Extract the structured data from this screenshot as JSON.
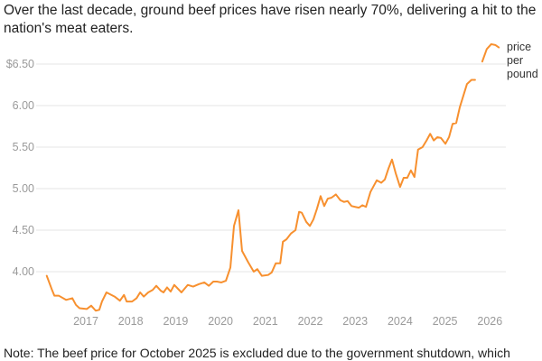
{
  "chart_data": {
    "type": "line",
    "title": "Over the last decade, ground beef prices have risen nearly 70%, delivering a hit to the nation's meat eaters.",
    "note": "Note: The beef price for October 2025 is excluded due to the government shutdown, which",
    "xlabel": "",
    "ylabel": "",
    "ylim": [
      3.57,
      6.75
    ],
    "xlim": [
      2015.9,
      2026.4
    ],
    "grid": true,
    "y_ticks": [
      {
        "value": 4.0,
        "label": "4.00"
      },
      {
        "value": 4.5,
        "label": "4.50"
      },
      {
        "value": 5.0,
        "label": "5.00"
      },
      {
        "value": 5.5,
        "label": "5.50"
      },
      {
        "value": 6.0,
        "label": "6.00"
      },
      {
        "value": 6.5,
        "label": "$6.50"
      }
    ],
    "x_ticks": [
      {
        "value": 2017,
        "label": "2017"
      },
      {
        "value": 2018,
        "label": "2018"
      },
      {
        "value": 2019,
        "label": "2019"
      },
      {
        "value": 2020,
        "label": "2020"
      },
      {
        "value": 2021,
        "label": "2021"
      },
      {
        "value": 2022,
        "label": "2022"
      },
      {
        "value": 2023,
        "label": "2023"
      },
      {
        "value": 2024,
        "label": "2024"
      },
      {
        "value": 2025,
        "label": "2025"
      },
      {
        "value": 2026,
        "label": "2026"
      }
    ],
    "series": [
      {
        "name": "price per pound",
        "label_lines": [
          "price",
          "per",
          "pound"
        ],
        "color": "#f7902f",
        "x": [
          2016.13,
          2016.24,
          2016.3,
          2016.4,
          2016.56,
          2016.7,
          2016.78,
          2016.86,
          2017.02,
          2017.12,
          2017.22,
          2017.3,
          2017.36,
          2017.46,
          2017.64,
          2017.76,
          2017.85,
          2017.91,
          2018.03,
          2018.13,
          2018.21,
          2018.29,
          2018.39,
          2018.49,
          2018.57,
          2018.67,
          2018.73,
          2018.81,
          2018.89,
          2018.97,
          2019.13,
          2019.27,
          2019.39,
          2019.52,
          2019.64,
          2019.74,
          2019.84,
          2019.92,
          2020.02,
          2020.12,
          2020.22,
          2020.3,
          2020.4,
          2020.48,
          2020.62,
          2020.74,
          2020.82,
          2020.92,
          2021.06,
          2021.14,
          2021.23,
          2021.33,
          2021.39,
          2021.47,
          2021.57,
          2021.67,
          2021.75,
          2021.81,
          2021.91,
          2021.99,
          2022.07,
          2022.15,
          2022.23,
          2022.31,
          2022.39,
          2022.47,
          2022.57,
          2022.67,
          2022.75,
          2022.83,
          2022.92,
          2023.0,
          2023.08,
          2023.16,
          2023.24,
          2023.34,
          2023.48,
          2023.58,
          2023.66,
          2023.74,
          2023.82,
          2023.9,
          2024.0,
          2024.08,
          2024.16,
          2024.24,
          2024.32,
          2024.4,
          2024.5,
          2024.59,
          2024.67,
          2024.75,
          2024.83,
          2024.91,
          2025.01,
          2025.09,
          2025.17,
          2025.25,
          2025.33,
          2025.41,
          2025.49,
          2025.59,
          2025.67,
          2025.75,
          2025.83,
          2025.93,
          2026.03,
          2026.12,
          2026.2
        ],
        "y": [
          3.95,
          3.79,
          3.71,
          3.71,
          3.66,
          3.68,
          3.6,
          3.56,
          3.55,
          3.59,
          3.53,
          3.54,
          3.64,
          3.75,
          3.7,
          3.65,
          3.72,
          3.64,
          3.64,
          3.68,
          3.75,
          3.7,
          3.75,
          3.78,
          3.83,
          3.77,
          3.75,
          3.81,
          3.76,
          3.84,
          3.75,
          3.84,
          3.82,
          3.85,
          3.87,
          3.83,
          3.88,
          3.88,
          3.87,
          3.89,
          4.05,
          4.55,
          4.74,
          4.25,
          4.11,
          4.0,
          4.03,
          3.95,
          3.96,
          3.99,
          4.1,
          4.1,
          4.36,
          4.39,
          4.46,
          4.5,
          4.72,
          4.71,
          4.6,
          4.55,
          4.63,
          4.76,
          4.91,
          4.79,
          4.88,
          4.89,
          4.93,
          4.86,
          4.84,
          4.85,
          4.79,
          4.78,
          4.77,
          4.8,
          4.78,
          4.96,
          5.1,
          5.07,
          5.11,
          5.24,
          5.35,
          5.19,
          5.02,
          5.13,
          5.13,
          5.22,
          5.14,
          5.47,
          5.5,
          5.58,
          5.66,
          5.58,
          5.62,
          5.61,
          5.54,
          5.62,
          5.78,
          5.79,
          5.98,
          6.12,
          6.26,
          6.31,
          6.31,
          null,
          6.53,
          6.68,
          6.74,
          6.73,
          6.7
        ]
      }
    ]
  }
}
